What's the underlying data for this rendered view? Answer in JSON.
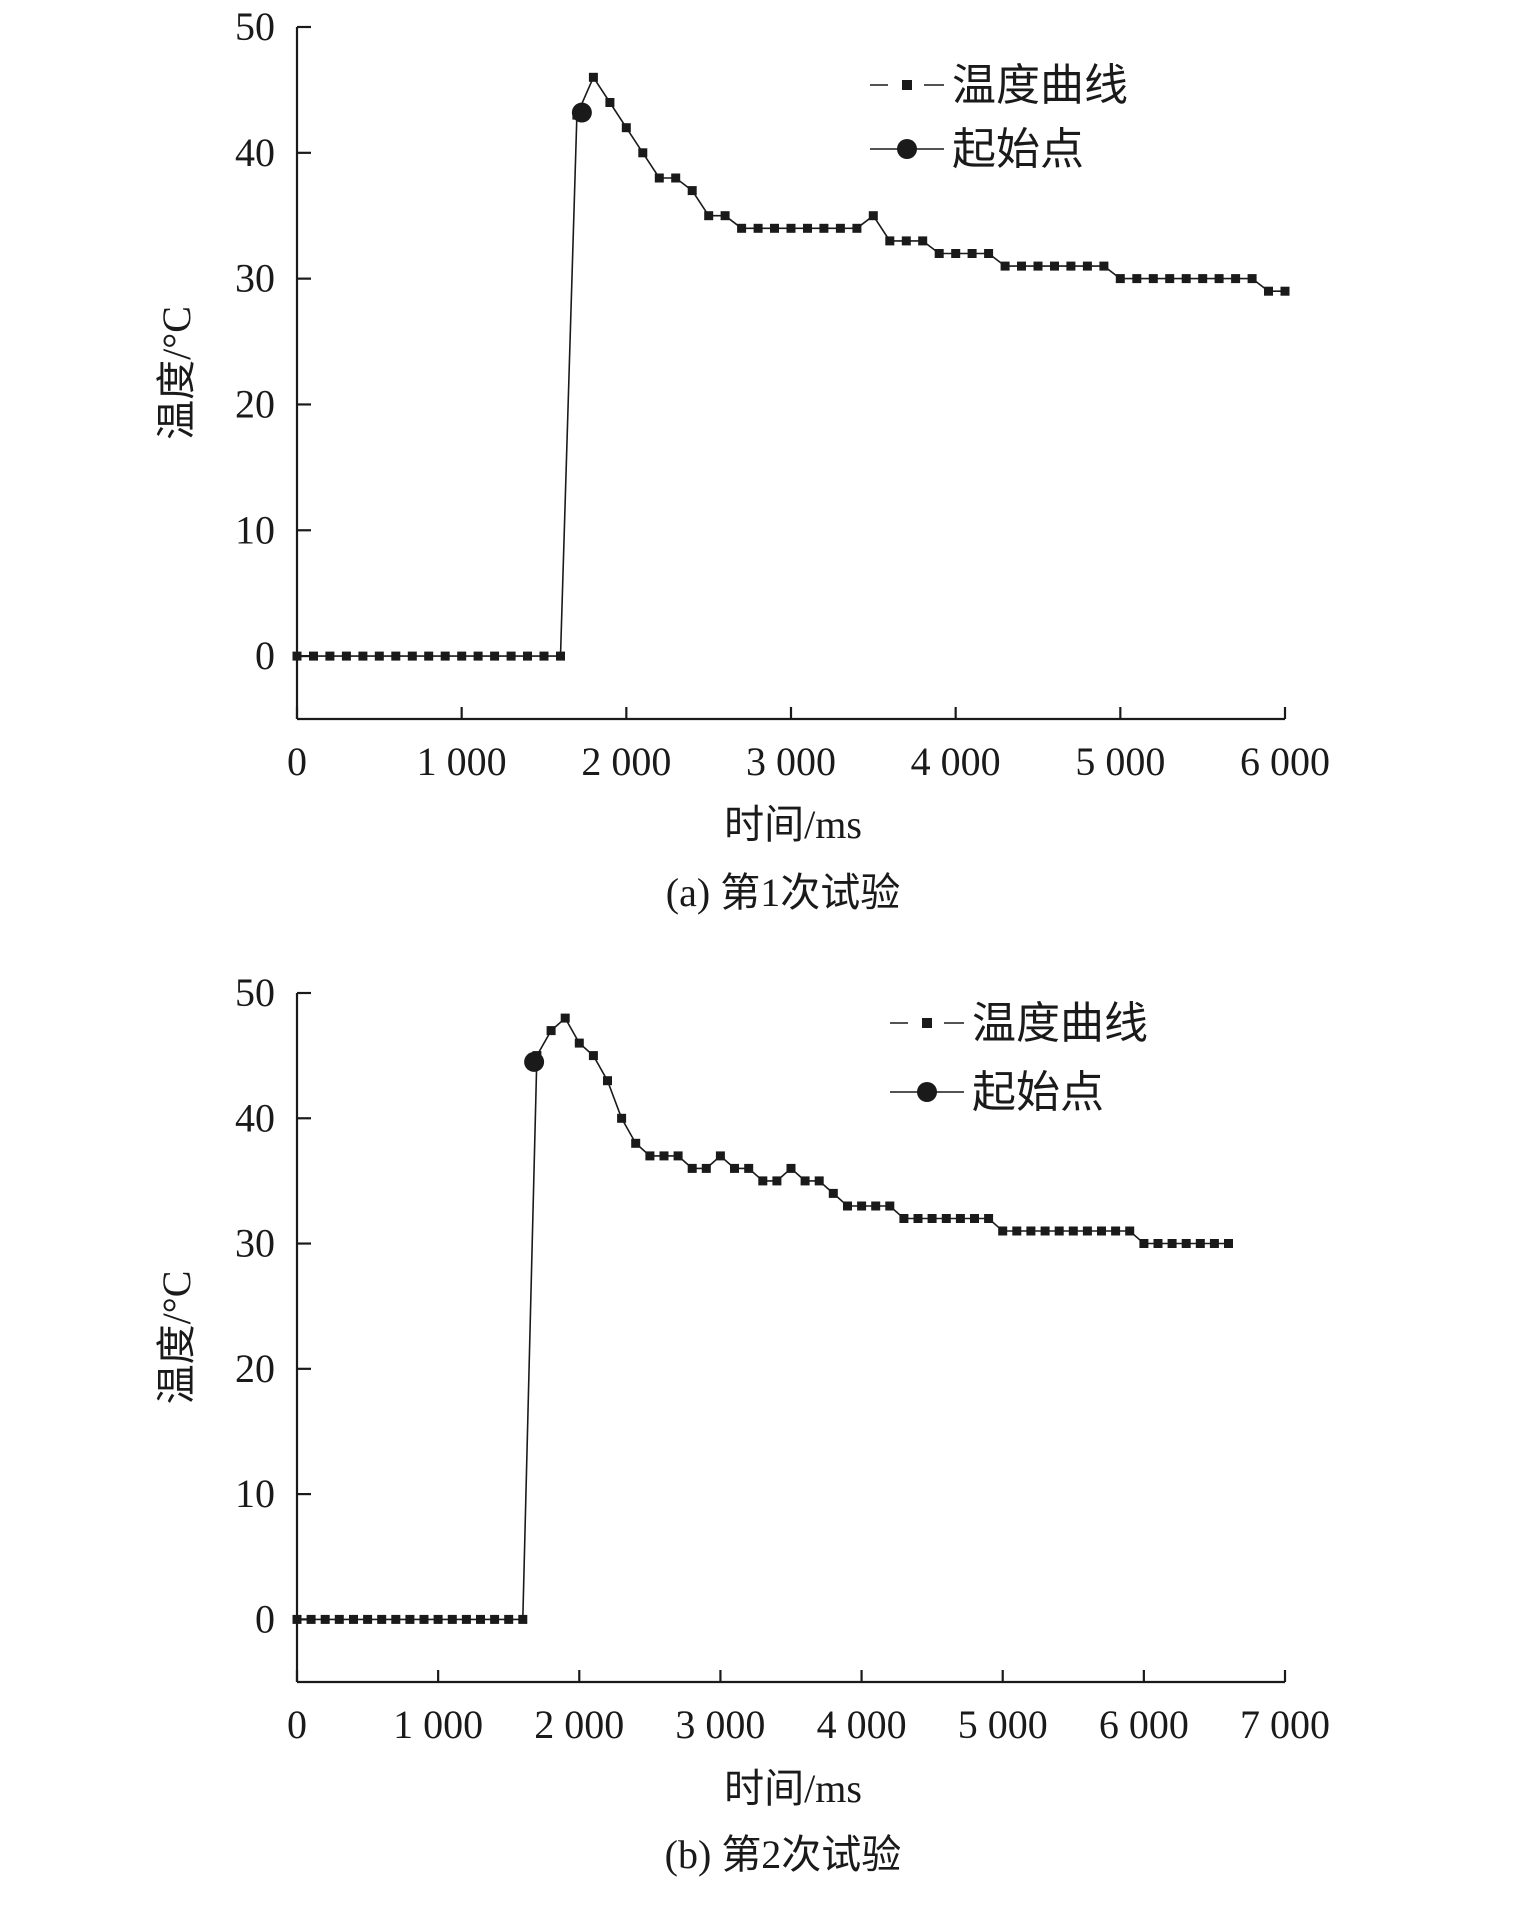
{
  "chart_data": [
    {
      "type": "line",
      "caption": "(a) 第1次试验",
      "xlabel": "时间/ms",
      "ylabel": "温度/°C",
      "xlim": [
        0,
        6000
      ],
      "ylim": [
        -5,
        50
      ],
      "xticks": [
        0,
        1000,
        2000,
        3000,
        4000,
        5000,
        6000
      ],
      "xtick_labels": [
        "0",
        "1 000",
        "2 000",
        "3 000",
        "4 000",
        "5 000",
        "6 000"
      ],
      "yticks": [
        0,
        10,
        20,
        30,
        40,
        50
      ],
      "ytick_labels": [
        "0",
        "10",
        "20",
        "30",
        "40",
        "50"
      ],
      "grid": false,
      "legend_position": "top-right",
      "series": [
        {
          "name": "温度曲线",
          "style": "dashed-square-markers",
          "x": [
            0,
            100,
            200,
            300,
            400,
            500,
            600,
            700,
            800,
            900,
            1000,
            1100,
            1200,
            1300,
            1400,
            1500,
            1600,
            1700,
            1800,
            1900,
            2000,
            2100,
            2200,
            2300,
            2400,
            2500,
            2600,
            2700,
            2800,
            2900,
            3000,
            3100,
            3200,
            3300,
            3400,
            3500,
            3600,
            3700,
            3800,
            3900,
            4000,
            4100,
            4200,
            4300,
            4400,
            4500,
            4600,
            4700,
            4800,
            4900,
            5000,
            5100,
            5200,
            5300,
            5400,
            5500,
            5600,
            5700,
            5800,
            5900,
            6000
          ],
          "y": [
            0,
            0,
            0,
            0,
            0,
            0,
            0,
            0,
            0,
            0,
            0,
            0,
            0,
            0,
            0,
            0,
            0,
            43,
            46,
            44,
            42,
            40,
            38,
            38,
            37,
            35,
            35,
            34,
            34,
            34,
            34,
            34,
            34,
            34,
            34,
            35,
            33,
            33,
            33,
            32,
            32,
            32,
            32,
            31,
            31,
            31,
            31,
            31,
            31,
            31,
            30,
            30,
            30,
            30,
            30,
            30,
            30,
            30,
            30,
            29,
            29
          ]
        },
        {
          "name": "起始点",
          "style": "circle-marker",
          "x": [
            1730
          ],
          "y": [
            43.2
          ]
        }
      ]
    },
    {
      "type": "line",
      "caption": "(b) 第2次试验",
      "xlabel": "时间/ms",
      "ylabel": "温度/°C",
      "xlim": [
        0,
        7000
      ],
      "ylim": [
        -5,
        50
      ],
      "xticks": [
        0,
        1000,
        2000,
        3000,
        4000,
        5000,
        6000,
        7000
      ],
      "xtick_labels": [
        "0",
        "1 000",
        "2 000",
        "3 000",
        "4 000",
        "5 000",
        "6 000",
        "7 000"
      ],
      "yticks": [
        0,
        10,
        20,
        30,
        40,
        50
      ],
      "ytick_labels": [
        "0",
        "10",
        "20",
        "30",
        "40",
        "50"
      ],
      "grid": false,
      "legend_position": "top-right",
      "series": [
        {
          "name": "温度曲线",
          "style": "dashed-square-markers",
          "x": [
            0,
            100,
            200,
            300,
            400,
            500,
            600,
            700,
            800,
            900,
            1000,
            1100,
            1200,
            1300,
            1400,
            1500,
            1600,
            1700,
            1800,
            1900,
            2000,
            2100,
            2200,
            2300,
            2400,
            2500,
            2600,
            2700,
            2800,
            2900,
            3000,
            3100,
            3200,
            3300,
            3400,
            3500,
            3600,
            3700,
            3800,
            3900,
            4000,
            4100,
            4200,
            4300,
            4400,
            4500,
            4600,
            4700,
            4800,
            4900,
            5000,
            5100,
            5200,
            5300,
            5400,
            5500,
            5600,
            5700,
            5800,
            5900,
            6000,
            6100,
            6200,
            6300,
            6400,
            6500,
            6600
          ],
          "y": [
            0,
            0,
            0,
            0,
            0,
            0,
            0,
            0,
            0,
            0,
            0,
            0,
            0,
            0,
            0,
            0,
            0,
            45,
            47,
            48,
            46,
            45,
            43,
            40,
            38,
            37,
            37,
            37,
            36,
            36,
            37,
            36,
            36,
            35,
            35,
            36,
            35,
            35,
            34,
            33,
            33,
            33,
            33,
            32,
            32,
            32,
            32,
            32,
            32,
            32,
            31,
            31,
            31,
            31,
            31,
            31,
            31,
            31,
            31,
            31,
            30,
            30,
            30,
            30,
            30,
            30,
            30
          ]
        },
        {
          "name": "起始点",
          "style": "circle-marker",
          "x": [
            1680
          ],
          "y": [
            44.5
          ]
        }
      ]
    }
  ]
}
